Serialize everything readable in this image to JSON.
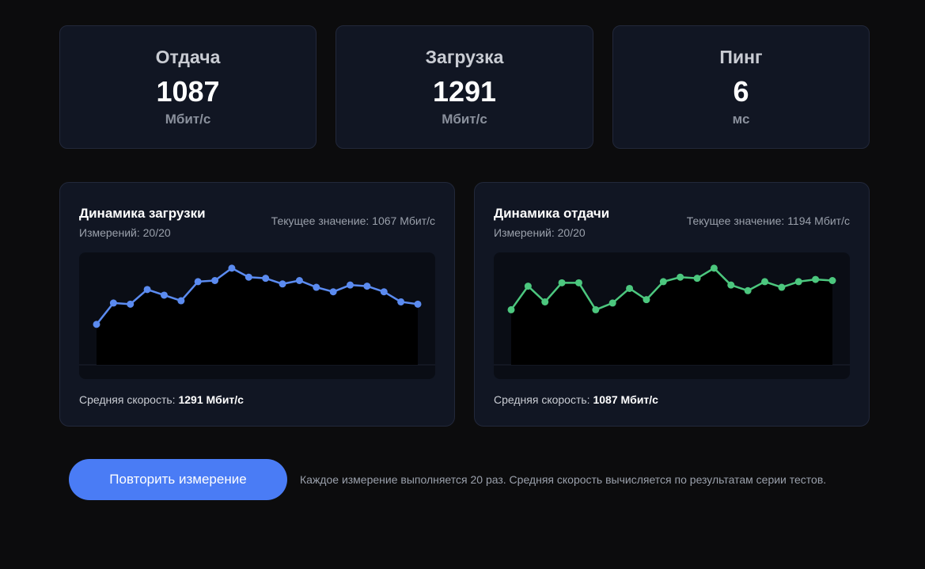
{
  "stats": {
    "upload": {
      "label": "Отдача",
      "value": "1087",
      "unit": "Мбит/с"
    },
    "download": {
      "label": "Загрузка",
      "value": "1291",
      "unit": "Мбит/с"
    },
    "ping": {
      "label": "Пинг",
      "value": "6",
      "unit": "мс"
    }
  },
  "download_chart": {
    "title": "Динамика загрузки",
    "count_label": "Измерений:",
    "count_value": "20/20",
    "current_label": "Текущее значение:",
    "current_value": "1067 Мбит/с",
    "avg_label": "Средняя скорость:",
    "avg_value": "1291 Мбит/с",
    "color": "#5b8bf0"
  },
  "upload_chart": {
    "title": "Динамика отдачи",
    "count_label": "Измерений:",
    "count_value": "20/20",
    "current_label": "Текущее значение:",
    "current_value": "1194 Мбит/с",
    "avg_label": "Средняя скорость:",
    "avg_value": "1087 Мбит/с",
    "color": "#4cc77e"
  },
  "actions": {
    "retry_label": "Повторить измерение",
    "note": "Каждое измерение выполняется 20 раз. Средняя скорость вычисляется по результатам серии тестов."
  },
  "chart_data": [
    {
      "type": "area",
      "title": "Динамика загрузки",
      "x": [
        1,
        2,
        3,
        4,
        5,
        6,
        7,
        8,
        9,
        10,
        11,
        12,
        13,
        14,
        15,
        16,
        17,
        18,
        19,
        20
      ],
      "series": [
        {
          "values": [
            0.36,
            0.55,
            0.54,
            0.67,
            0.62,
            0.57,
            0.74,
            0.75,
            0.86,
            0.78,
            0.77,
            0.72,
            0.75,
            0.69,
            0.65,
            0.71,
            0.7,
            0.65,
            0.56,
            0.54
          ]
        }
      ],
      "ylim": [
        0,
        1
      ],
      "grid": false,
      "legend": "none"
    },
    {
      "type": "area",
      "title": "Динамика отдачи",
      "x": [
        1,
        2,
        3,
        4,
        5,
        6,
        7,
        8,
        9,
        10,
        11,
        12,
        13,
        14,
        15,
        16,
        17,
        18,
        19,
        20
      ],
      "series": [
        {
          "values": [
            0.49,
            0.7,
            0.56,
            0.73,
            0.73,
            0.49,
            0.55,
            0.68,
            0.58,
            0.74,
            0.78,
            0.77,
            0.86,
            0.71,
            0.66,
            0.74,
            0.69,
            0.74,
            0.76,
            0.75
          ]
        }
      ],
      "ylim": [
        0,
        1
      ],
      "grid": false,
      "legend": "none"
    }
  ]
}
